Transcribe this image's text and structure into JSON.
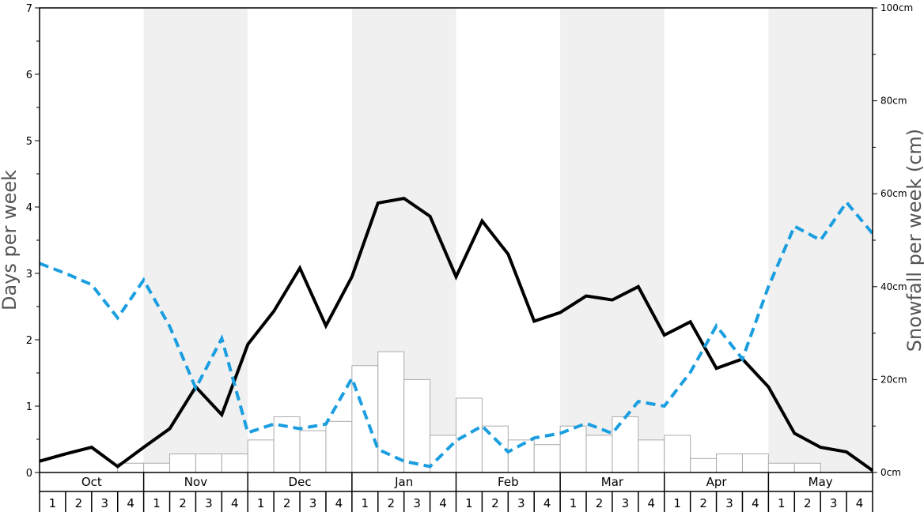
{
  "chart_data": {
    "type": "bar+line",
    "months": [
      "Oct",
      "Nov",
      "Dec",
      "Jan",
      "Feb",
      "Mar",
      "Apr",
      "May"
    ],
    "weeks": [
      "1",
      "2",
      "3",
      "4"
    ],
    "left_axis": {
      "label": "Days per week",
      "ylim": [
        0,
        7
      ],
      "ticks": [
        "0",
        "1",
        "2",
        "3",
        "4",
        "5",
        "6",
        "7"
      ]
    },
    "right_axis": {
      "label": "Snowfall per week (cm)",
      "ylim": [
        0,
        100
      ],
      "ticks": [
        "0cm",
        "20cm",
        "40cm",
        "60cm",
        "80cm",
        "100cm"
      ]
    },
    "snowfall_bars_cm": [
      0,
      0,
      0,
      2,
      2,
      4,
      4,
      4,
      7,
      12,
      9,
      11,
      23,
      26,
      20,
      8,
      16,
      10,
      7,
      6,
      10,
      8,
      12,
      7,
      8,
      3,
      4,
      4,
      2,
      2,
      0,
      0
    ],
    "series": [
      {
        "values": [
          0.17,
          0.28,
          0.38,
          0.09,
          0.38,
          0.66,
          1.29,
          0.87,
          1.93,
          2.43,
          3.08,
          2.21,
          2.95,
          4.06,
          4.13,
          3.86,
          2.95,
          3.79,
          3.29,
          2.28,
          2.41,
          2.66,
          2.6,
          2.8,
          2.07,
          2.27,
          1.57,
          1.71,
          1.29,
          0.59,
          0.38,
          0.31,
          0.03
        ],
        "color": "#000000",
        "style": "solid"
      },
      {
        "values": [
          3.15,
          3.0,
          2.83,
          2.33,
          2.9,
          2.2,
          1.27,
          2.02,
          0.6,
          0.73,
          0.66,
          0.73,
          1.42,
          0.35,
          0.17,
          0.09,
          0.48,
          0.7,
          0.31,
          0.52,
          0.59,
          0.74,
          0.59,
          1.07,
          1.0,
          1.51,
          2.21,
          1.71,
          2.8,
          3.71,
          3.5,
          4.07,
          3.6
        ],
        "color": "#1a9ee0",
        "style": "dashed"
      }
    ],
    "band_colors": [
      "#ffffff",
      "#f0f0f0"
    ]
  }
}
